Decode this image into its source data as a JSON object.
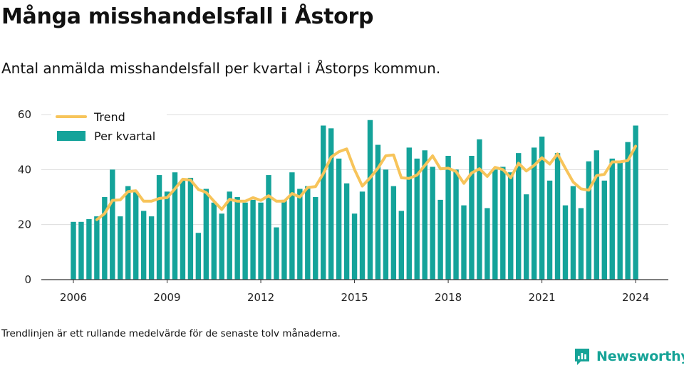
{
  "title": "Många misshandelsfall i Åstorp",
  "subtitle": "Antal anmälda misshandelsfall per kvartal i Åstorps kommun.",
  "footnote": "Trendlinjen är ett rullande medelvärde för de senaste tolv månaderna.",
  "brand": {
    "name": "Newsworthy",
    "icon": "newsworthy-logo-icon",
    "color": "#16a397"
  },
  "chart_data": {
    "type": "bar",
    "title": "Många misshandelsfall i Åstorp",
    "subtitle": "Antal anmälda misshandelsfall per kvartal i Åstorps kommun.",
    "xlabel": "",
    "ylabel": "",
    "ylim": [
      0,
      60
    ],
    "yticks": [
      0,
      20,
      40,
      60
    ],
    "xticks": [
      {
        "label": "2006",
        "value": 2006
      },
      {
        "label": "2009",
        "value": 2009
      },
      {
        "label": "2012",
        "value": 2012
      },
      {
        "label": "2015",
        "value": 2015
      },
      {
        "label": "2018",
        "value": 2018
      },
      {
        "label": "2021",
        "value": 2021
      },
      {
        "label": "2024",
        "value": 2024
      }
    ],
    "x_start": 2006,
    "grid": true,
    "legend_position": "top-left",
    "series": [
      {
        "name": "Per kvartal",
        "type": "bar",
        "color": "#14a39a",
        "values": [
          21,
          21,
          22,
          23,
          30,
          40,
          23,
          34,
          32,
          25,
          23,
          38,
          32,
          39,
          36,
          37,
          17,
          33,
          28,
          24,
          32,
          30,
          28,
          29,
          28,
          38,
          19,
          29,
          39,
          33,
          34,
          30,
          56,
          55,
          44,
          35,
          24,
          32,
          58,
          49,
          40,
          34,
          25,
          48,
          44,
          47,
          41,
          29,
          45,
          40,
          27,
          45,
          51,
          26,
          40,
          41,
          39,
          46,
          31,
          48,
          52,
          36,
          46,
          27,
          34,
          26,
          43,
          47,
          36,
          44,
          43,
          50,
          56
        ]
      },
      {
        "name": "Trend",
        "type": "line",
        "color": "#f7c45a",
        "start_index": 3,
        "values": [
          21.8,
          24.0,
          28.8,
          29.0,
          32.0,
          32.3,
          28.5,
          28.5,
          29.5,
          29.8,
          33.0,
          36.5,
          36.2,
          32.8,
          31.7,
          28.5,
          25.5,
          29.2,
          28.5,
          28.5,
          29.8,
          28.8,
          30.5,
          28.5,
          28.5,
          31.3,
          30.0,
          33.5,
          33.8,
          38.5,
          44.5,
          46.5,
          47.5,
          40.0,
          34.0,
          37.0,
          40.5,
          45.0,
          45.3,
          37.0,
          36.8,
          38.0,
          41.5,
          45.0,
          40.3,
          40.5,
          39.3,
          35.0,
          38.8,
          40.3,
          37.5,
          40.8,
          40.0,
          37.0,
          42.3,
          39.5,
          41.5,
          44.3,
          42.0,
          45.7,
          40.5,
          35.5,
          33.0,
          32.5,
          37.8,
          38.3,
          42.8,
          42.8,
          43.3,
          48.5
        ]
      }
    ]
  }
}
